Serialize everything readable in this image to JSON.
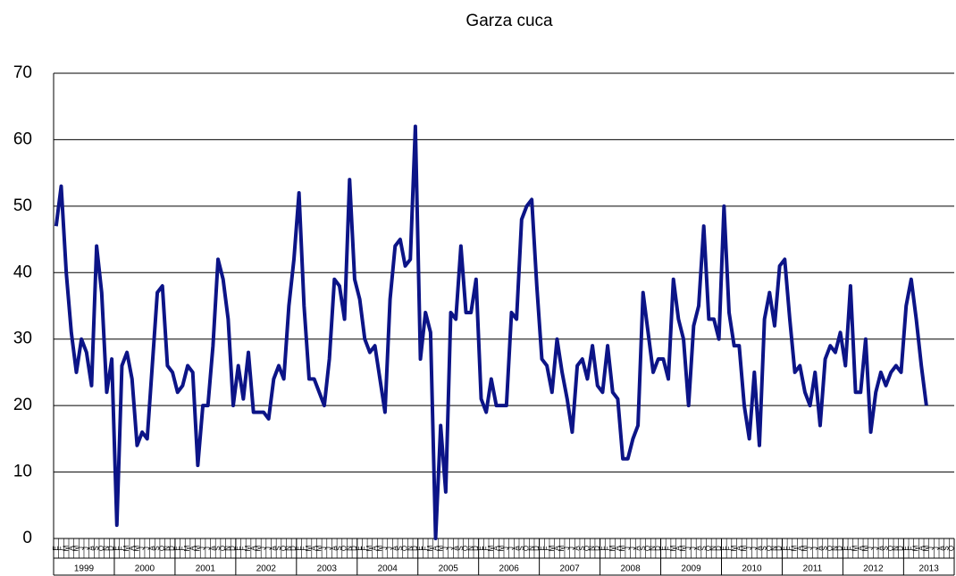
{
  "chart_data": {
    "type": "line",
    "title": "Garza cuca",
    "categories": [
      "E",
      "F",
      "M",
      "A",
      "M",
      "J",
      "J",
      "A",
      "S",
      "O",
      "N",
      "D",
      "E",
      "F",
      "M",
      "A",
      "M",
      "J",
      "J",
      "A",
      "S",
      "O",
      "N",
      "D",
      "E",
      "F",
      "M",
      "A",
      "M",
      "J",
      "J",
      "A",
      "S",
      "O",
      "N",
      "D",
      "E",
      "F",
      "M",
      "A",
      "M",
      "J",
      "J",
      "A",
      "S",
      "O",
      "N",
      "D",
      "E",
      "F",
      "M",
      "A",
      "M",
      "J",
      "J",
      "A",
      "S",
      "O",
      "N",
      "D",
      "E",
      "F",
      "M",
      "A",
      "M",
      "J",
      "J",
      "A",
      "S",
      "O",
      "N",
      "D",
      "E",
      "F",
      "M",
      "A",
      "M",
      "J",
      "J",
      "A",
      "S",
      "O",
      "N",
      "D",
      "E",
      "F",
      "M",
      "A",
      "M",
      "J",
      "J",
      "A",
      "S",
      "O",
      "N",
      "D",
      "E",
      "F",
      "M",
      "A",
      "M",
      "J",
      "J",
      "A",
      "S",
      "O",
      "N",
      "D",
      "E",
      "F",
      "M",
      "A",
      "M",
      "J",
      "J",
      "A",
      "S",
      "O",
      "N",
      "D",
      "E",
      "F",
      "M",
      "A",
      "M",
      "J",
      "J",
      "A",
      "S",
      "O",
      "N",
      "D",
      "E",
      "F",
      "M",
      "A",
      "M",
      "J",
      "J",
      "A",
      "S",
      "O",
      "N",
      "D",
      "E",
      "F",
      "M",
      "A",
      "M",
      "J",
      "J",
      "A",
      "S",
      "O",
      "N",
      "D",
      "E",
      "F",
      "M",
      "A",
      "M",
      "J",
      "J",
      "A",
      "S",
      "O",
      "N",
      "D",
      "E",
      "F",
      "M",
      "A",
      "M",
      "J",
      "J",
      "A",
      "S",
      "O"
    ],
    "years": [
      "1999",
      "2000",
      "2001",
      "2002",
      "2003",
      "2004",
      "2005",
      "2006",
      "2007",
      "2008",
      "2009",
      "2010",
      "2011",
      "2012",
      "2013"
    ],
    "series": [
      {
        "name": "Garza cuca",
        "color": "#0c1487",
        "values": [
          47,
          53,
          40,
          31,
          25,
          30,
          28,
          23,
          44,
          37,
          22,
          27,
          2,
          26,
          28,
          24,
          14,
          16,
          15,
          26,
          37,
          38,
          26,
          25,
          22,
          23,
          26,
          25,
          11,
          20,
          20,
          29,
          42,
          39,
          33,
          20,
          26,
          21,
          28,
          19,
          19,
          19,
          18,
          24,
          26,
          24,
          35,
          42,
          52,
          35,
          24,
          24,
          22,
          20,
          27,
          39,
          38,
          33,
          54,
          39,
          36,
          30,
          28,
          29,
          24,
          19,
          36,
          44,
          45,
          41,
          42,
          62,
          27,
          34,
          31,
          0,
          17,
          7,
          34,
          33,
          44,
          34,
          34,
          39,
          21,
          19,
          24,
          20,
          20,
          20,
          34,
          33,
          48,
          50,
          51,
          38,
          27,
          26,
          22,
          30,
          25,
          21,
          16,
          26,
          27,
          24,
          29,
          23,
          22,
          29,
          22,
          21,
          12,
          12,
          15,
          17,
          37,
          31,
          25,
          27,
          27,
          24,
          39,
          33,
          30,
          20,
          32,
          35,
          47,
          33,
          33,
          30,
          50,
          34,
          29,
          29,
          20,
          15,
          25,
          14,
          33,
          37,
          32,
          41,
          42,
          33,
          25,
          26,
          22,
          20,
          25,
          17,
          27,
          29,
          28,
          31,
          26,
          38,
          22,
          22,
          30,
          16,
          22,
          25,
          23,
          25,
          26,
          25,
          35,
          39,
          33,
          26,
          20,
          null,
          null,
          null,
          null,
          null
        ]
      }
    ],
    "ylim": [
      0,
      70
    ],
    "yticks": [
      0,
      10,
      20,
      30,
      40,
      50,
      60,
      70
    ],
    "grid": true
  }
}
